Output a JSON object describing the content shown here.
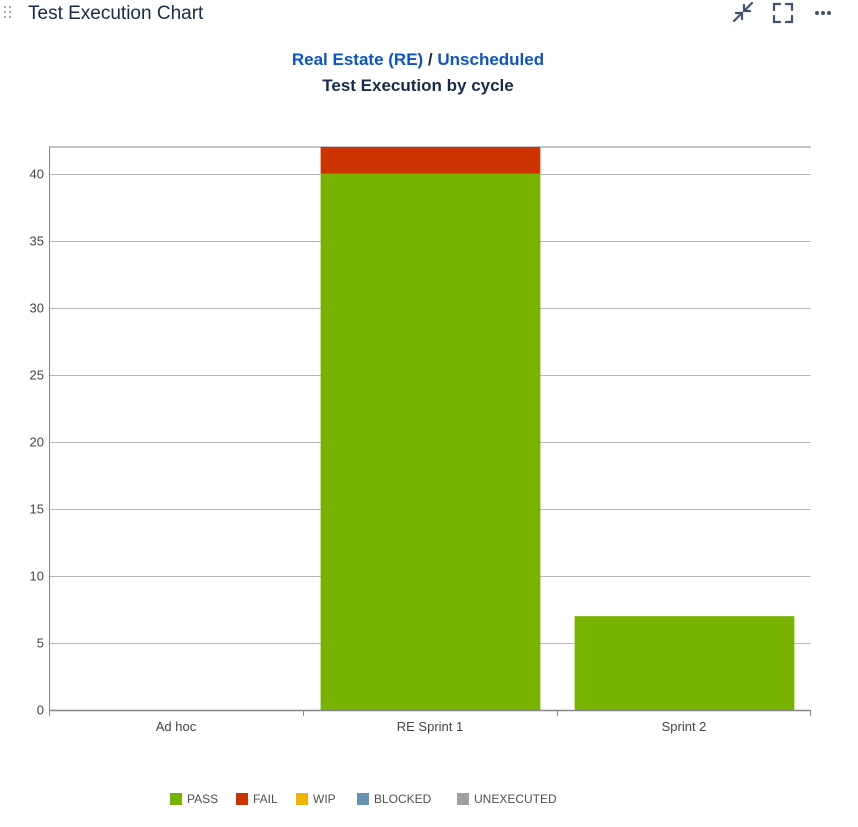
{
  "header": {
    "title": "Test Execution Chart",
    "actions": [
      {
        "name": "minimize-button",
        "icon": "arrows-collapse-icon"
      },
      {
        "name": "fullscreen-button",
        "icon": "fullscreen-icon"
      },
      {
        "name": "more-button",
        "icon": "ellipsis-icon"
      }
    ]
  },
  "subtitle": {
    "project": "Real Estate (RE)",
    "separator": " / ",
    "version": "Unscheduled"
  },
  "chart_data": {
    "type": "bar",
    "stacked": true,
    "title": "Test Execution by cycle",
    "categories": [
      "Ad hoc",
      "RE Sprint 1",
      "Sprint 2"
    ],
    "series": [
      {
        "name": "PASS",
        "color": "#77b300",
        "values": [
          0,
          40,
          7
        ]
      },
      {
        "name": "FAIL",
        "color": "#cc3300",
        "values": [
          0,
          2,
          0
        ]
      },
      {
        "name": "WIP",
        "color": "#f2b200",
        "values": [
          0,
          0,
          0
        ]
      },
      {
        "name": "BLOCKED",
        "color": "#6693b0",
        "values": [
          0,
          0,
          0
        ]
      },
      {
        "name": "UNEXECUTED",
        "color": "#a0a0a0",
        "values": [
          0,
          0,
          0
        ]
      }
    ],
    "ylim": [
      0,
      42
    ],
    "yticks": [
      0,
      5,
      10,
      15,
      20,
      25,
      30,
      35,
      40
    ],
    "xlabel": "",
    "ylabel": "",
    "grid": true,
    "legend_position": "bottom"
  }
}
